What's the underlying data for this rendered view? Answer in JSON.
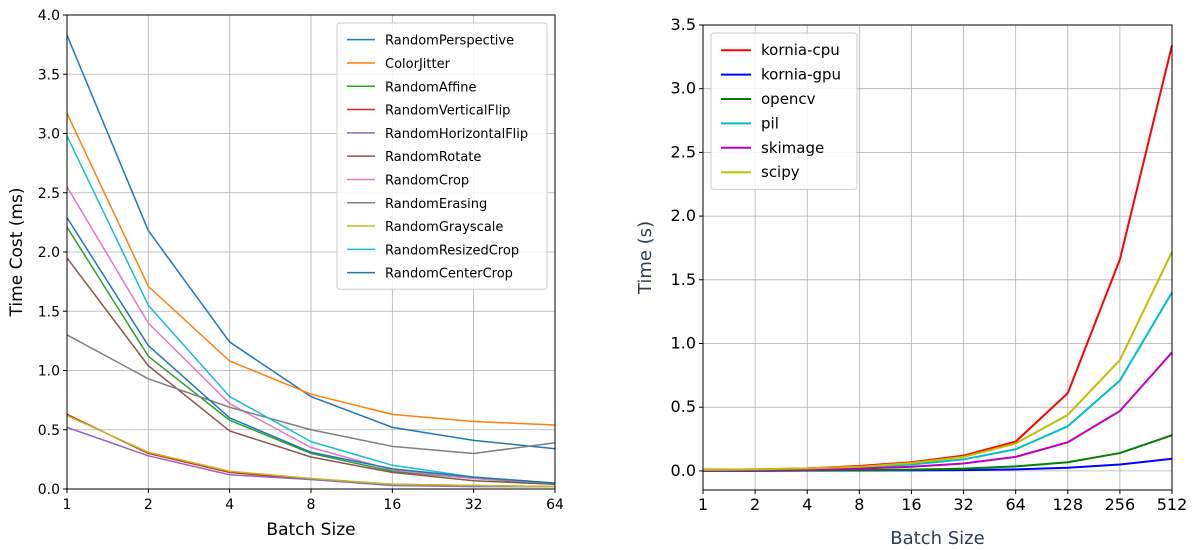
{
  "chart_data": [
    {
      "type": "line",
      "xlabel": "Batch Size",
      "ylabel": "Time Cost (ms)",
      "x_scale": "log2",
      "x": [
        1,
        2,
        4,
        8,
        16,
        32,
        64
      ],
      "xticks": [
        "1",
        "2",
        "4",
        "8",
        "16",
        "32",
        "64"
      ],
      "xlim": [
        1,
        64
      ],
      "ylim": [
        0.0,
        4.0
      ],
      "yticks": [
        "0.0",
        "0.5",
        "1.0",
        "1.5",
        "2.0",
        "2.5",
        "3.0",
        "3.5",
        "4.0"
      ],
      "grid": true,
      "legend_position": "top-right",
      "series": [
        {
          "name": "RandomPerspective",
          "color": "#1f77b4",
          "values": [
            3.83,
            2.18,
            1.24,
            0.78,
            0.52,
            0.41,
            0.34
          ]
        },
        {
          "name": "ColorJitter",
          "color": "#ff7f0e",
          "values": [
            3.17,
            1.71,
            1.08,
            0.8,
            0.63,
            0.57,
            0.54
          ]
        },
        {
          "name": "RandomAffine",
          "color": "#2ca02c",
          "values": [
            2.21,
            1.12,
            0.58,
            0.3,
            0.15,
            0.09,
            0.04
          ]
        },
        {
          "name": "RandomVerticalFlip",
          "color": "#d62728",
          "values": [
            0.63,
            0.3,
            0.14,
            0.08,
            0.04,
            0.03,
            0.02
          ]
        },
        {
          "name": "RandomHorizontalFlip",
          "color": "#9467bd",
          "values": [
            0.52,
            0.28,
            0.12,
            0.08,
            0.03,
            0.02,
            0.02
          ]
        },
        {
          "name": "RandomRotate",
          "color": "#8c564b",
          "values": [
            1.95,
            1.04,
            0.49,
            0.27,
            0.14,
            0.07,
            0.04
          ]
        },
        {
          "name": "RandomCrop",
          "color": "#e377c2",
          "values": [
            2.55,
            1.4,
            0.72,
            0.35,
            0.16,
            0.09,
            0.05
          ]
        },
        {
          "name": "RandomErasing",
          "color": "#7f7f7f",
          "values": [
            1.3,
            0.93,
            0.69,
            0.5,
            0.36,
            0.3,
            0.39
          ]
        },
        {
          "name": "RandomGrayscale",
          "color": "#bcbd22",
          "values": [
            0.62,
            0.31,
            0.15,
            0.09,
            0.04,
            0.03,
            0.02
          ]
        },
        {
          "name": "RandomResizedCrop",
          "color": "#17becf",
          "values": [
            2.98,
            1.55,
            0.78,
            0.4,
            0.2,
            0.1,
            0.05
          ]
        },
        {
          "name": "RandomCenterCrop",
          "color": "#1f77b4",
          "values": [
            2.29,
            1.21,
            0.6,
            0.31,
            0.17,
            0.1,
            0.05
          ]
        }
      ]
    },
    {
      "type": "line",
      "xlabel": "Batch Size",
      "ylabel": "Time (s)",
      "x_scale": "log2",
      "x": [
        1,
        2,
        4,
        8,
        16,
        32,
        64,
        128,
        256,
        512
      ],
      "xticks": [
        "1",
        "2",
        "4",
        "8",
        "16",
        "32",
        "64",
        "128",
        "256",
        "512"
      ],
      "xlim": [
        1,
        512
      ],
      "ylim": [
        -0.15,
        3.5
      ],
      "yticks": [
        "0.0",
        "0.5",
        "1.0",
        "1.5",
        "2.0",
        "2.5",
        "3.0",
        "3.5"
      ],
      "grid": true,
      "legend_position": "top-left",
      "series": [
        {
          "name": "kornia-cpu",
          "color": "#ff0000",
          "values": [
            0.01,
            0.012,
            0.02,
            0.038,
            0.068,
            0.12,
            0.23,
            0.61,
            1.66,
            3.34
          ]
        },
        {
          "name": "kornia-gpu",
          "color": "#0000ff",
          "values": [
            0.0,
            0.0,
            0.002,
            0.003,
            0.004,
            0.006,
            0.012,
            0.025,
            0.05,
            0.095
          ]
        },
        {
          "name": "opencv",
          "color": "#008000",
          "values": [
            0.0,
            0.002,
            0.004,
            0.006,
            0.01,
            0.018,
            0.035,
            0.068,
            0.14,
            0.28
          ]
        },
        {
          "name": "pil",
          "color": "#00bfbf",
          "values": [
            0.005,
            0.008,
            0.015,
            0.025,
            0.05,
            0.09,
            0.17,
            0.35,
            0.71,
            1.4
          ]
        },
        {
          "name": "skimage",
          "color": "#bf00bf",
          "values": [
            0.003,
            0.005,
            0.01,
            0.018,
            0.032,
            0.058,
            0.11,
            0.225,
            0.47,
            0.93
          ]
        },
        {
          "name": "scipy",
          "color": "#bfbf00",
          "values": [
            0.008,
            0.012,
            0.02,
            0.032,
            0.062,
            0.11,
            0.215,
            0.44,
            0.87,
            1.72
          ]
        }
      ]
    }
  ]
}
